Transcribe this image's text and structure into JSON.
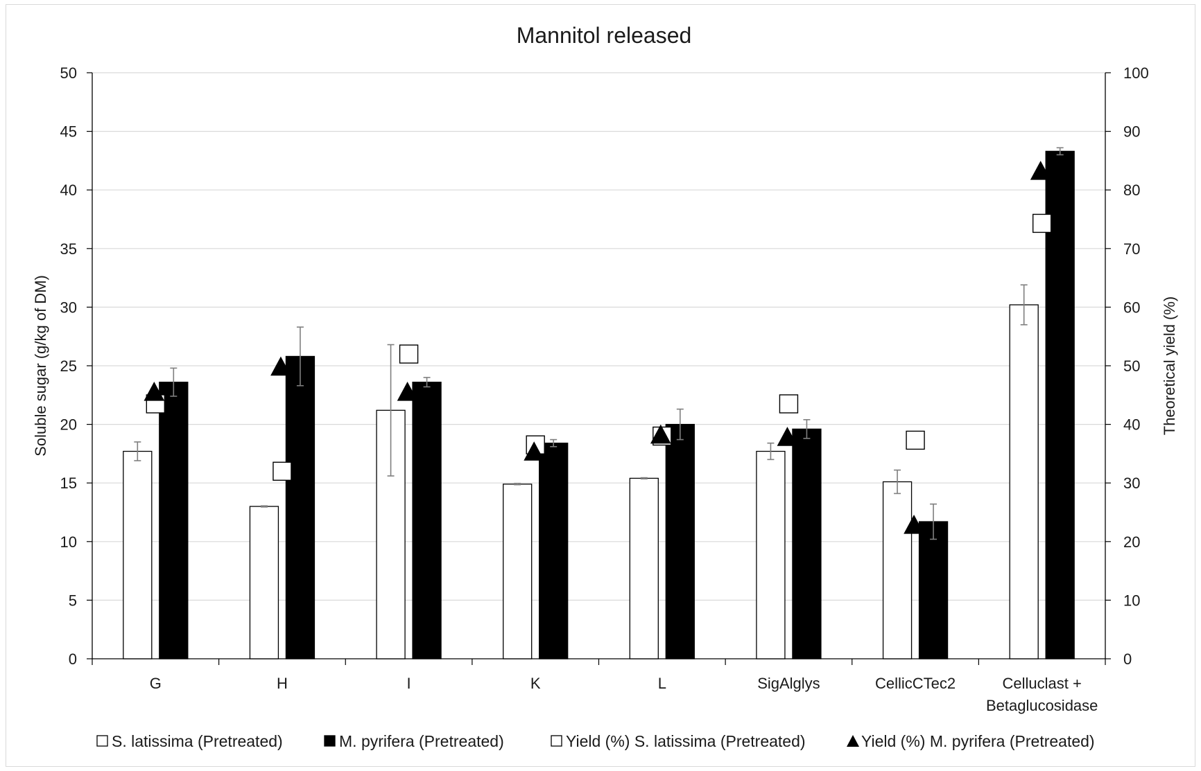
{
  "chart_data": {
    "type": "bar",
    "title": "Mannitol released",
    "ylabel": "Soluble sugar (g/kg of DM)",
    "y2label": "Theoretical yield (%)",
    "ylim": [
      0,
      50
    ],
    "y2lim": [
      0,
      100
    ],
    "yticks": [
      "0",
      "5",
      "10",
      "15",
      "20",
      "25",
      "30",
      "35",
      "40",
      "45",
      "50"
    ],
    "y2ticks": [
      "0",
      "10",
      "20",
      "30",
      "40",
      "50",
      "60",
      "70",
      "80",
      "90",
      "100"
    ],
    "grid": true,
    "legend_position": "bottom",
    "categories": [
      [
        "G"
      ],
      [
        "H"
      ],
      [
        "I"
      ],
      [
        "K"
      ],
      [
        "L"
      ],
      [
        "SigAlglys"
      ],
      [
        "CellicCTec2"
      ],
      [
        "Celluclast +",
        "Betaglucosidase"
      ]
    ],
    "series": [
      {
        "name": "S. latissima (Pretreated)",
        "kind": "bar",
        "fill": "#ffffff",
        "values": [
          17.7,
          13.0,
          21.2,
          14.9,
          15.4,
          17.7,
          15.1,
          30.2
        ],
        "errors": [
          0.8,
          0.05,
          5.6,
          0.05,
          0.05,
          0.7,
          1.0,
          1.7
        ]
      },
      {
        "name": "M. pyrifera (Pretreated)",
        "kind": "bar",
        "fill": "#000000",
        "values": [
          23.6,
          25.8,
          23.6,
          18.4,
          20.0,
          19.6,
          11.7,
          43.3
        ],
        "errors": [
          1.2,
          2.5,
          0.4,
          0.3,
          1.3,
          0.8,
          1.5,
          0.3
        ]
      },
      {
        "name": "Yield (%) S. latissima (Pretreated)",
        "kind": "marker",
        "marker": "square",
        "axis": "right",
        "values": [
          43.5,
          32.0,
          52.0,
          36.5,
          38.0,
          43.5,
          37.3,
          74.3
        ]
      },
      {
        "name": "Yield (%) M. pyrifera (Pretreated)",
        "kind": "marker",
        "marker": "triangle",
        "axis": "right",
        "values": [
          45.5,
          49.8,
          45.5,
          35.3,
          38.2,
          37.8,
          22.8,
          83.2
        ]
      }
    ]
  }
}
